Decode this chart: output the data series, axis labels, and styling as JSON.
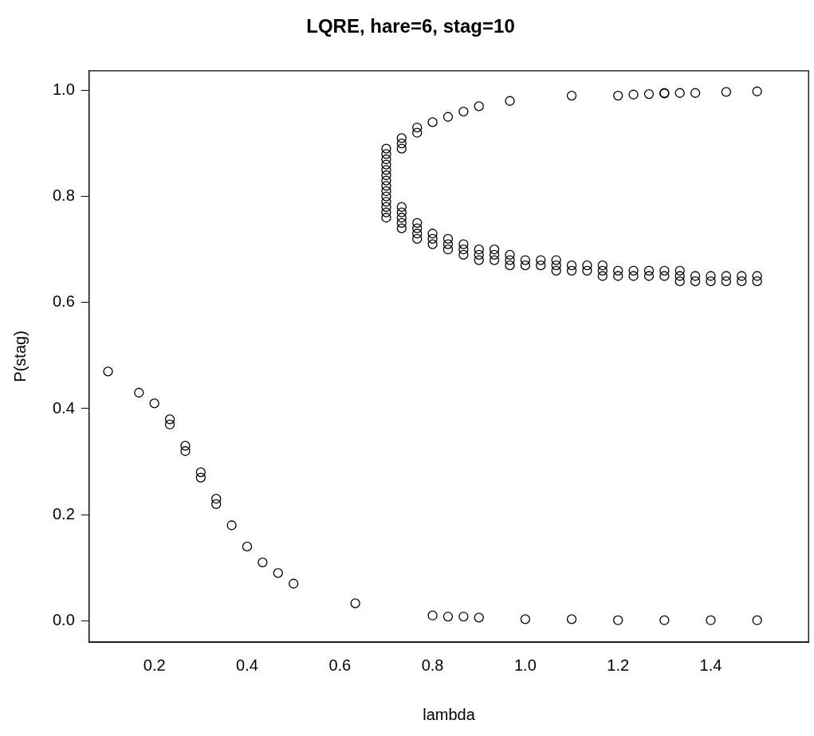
{
  "chart_data": {
    "type": "scatter",
    "title": "LQRE, hare=6, stag=10",
    "xlabel": "lambda",
    "ylabel": "P(stag)",
    "color": "#000000",
    "marker": "circle",
    "x": [
      0.1,
      0.1667,
      0.2,
      0.2333,
      0.2333,
      0.2667,
      0.2667,
      0.3,
      0.3,
      0.3333,
      0.3333,
      0.3667,
      0.4,
      0.4333,
      0.4667,
      0.5,
      0.6333,
      0.8,
      0.8333,
      0.8667,
      0.9,
      1.0,
      1.1,
      1.2,
      1.3,
      1.4,
      1.5,
      0.7,
      0.7,
      0.7,
      0.7,
      0.7,
      0.7,
      0.7,
      0.7,
      0.7,
      0.7,
      0.7,
      0.7,
      0.7,
      0.7,
      0.7333,
      0.7333,
      0.7333,
      0.7333,
      0.7333,
      0.7333,
      0.7333,
      0.7333,
      0.7667,
      0.7667,
      0.7667,
      0.7667,
      0.7667,
      0.7667,
      0.8,
      0.8,
      0.8,
      0.8,
      0.8333,
      0.8333,
      0.8333,
      0.8333,
      0.8667,
      0.8667,
      0.8667,
      0.8667,
      0.9,
      0.9,
      0.9,
      0.9,
      0.9333,
      0.9333,
      0.9333,
      0.9667,
      0.9667,
      0.9667,
      0.9667,
      1.0,
      1.0,
      1.0333,
      1.0333,
      1.0667,
      1.0667,
      1.0667,
      1.1,
      1.1,
      1.1,
      1.1333,
      1.1333,
      1.1667,
      1.1667,
      1.1667,
      1.2,
      1.2,
      1.2,
      1.2333,
      1.2333,
      1.2333,
      1.2667,
      1.2667,
      1.2667,
      1.3,
      1.3,
      1.3,
      1.3,
      1.3333,
      1.3333,
      1.3333,
      1.3333,
      1.3667,
      1.3667,
      1.3667,
      1.4,
      1.4,
      1.4333,
      1.4333,
      1.4333,
      1.4667,
      1.4667,
      1.5,
      1.5,
      1.5
    ],
    "values": [
      0.47,
      0.43,
      0.41,
      0.38,
      0.37,
      0.33,
      0.32,
      0.28,
      0.27,
      0.23,
      0.22,
      0.18,
      0.14,
      0.11,
      0.09,
      0.07,
      0.033,
      0.01,
      0.008,
      0.008,
      0.006,
      0.003,
      0.003,
      0.001,
      0.001,
      0.001,
      0.001,
      0.76,
      0.77,
      0.78,
      0.79,
      0.8,
      0.81,
      0.82,
      0.83,
      0.84,
      0.85,
      0.86,
      0.87,
      0.88,
      0.89,
      0.89,
      0.9,
      0.91,
      0.74,
      0.75,
      0.76,
      0.77,
      0.78,
      0.92,
      0.93,
      0.72,
      0.73,
      0.74,
      0.75,
      0.94,
      0.71,
      0.72,
      0.73,
      0.95,
      0.7,
      0.71,
      0.72,
      0.96,
      0.69,
      0.7,
      0.71,
      0.97,
      0.68,
      0.69,
      0.7,
      0.68,
      0.69,
      0.7,
      0.98,
      0.67,
      0.68,
      0.69,
      0.67,
      0.68,
      0.67,
      0.68,
      0.66,
      0.67,
      0.68,
      0.99,
      0.66,
      0.67,
      0.66,
      0.67,
      0.65,
      0.66,
      0.67,
      0.99,
      0.65,
      0.66,
      0.992,
      0.65,
      0.66,
      0.993,
      0.65,
      0.66,
      0.994,
      0.995,
      0.65,
      0.66,
      0.995,
      0.64,
      0.65,
      0.66,
      0.995,
      0.64,
      0.65,
      0.64,
      0.65,
      0.997,
      0.64,
      0.65,
      0.64,
      0.65,
      0.998,
      0.64,
      0.65
    ],
    "xlim": [
      0.0592,
      1.611
    ],
    "ylim": [
      -0.04,
      1.037
    ],
    "xticks": [
      {
        "value": 0.2,
        "label": "0.2"
      },
      {
        "value": 0.4,
        "label": "0.4"
      },
      {
        "value": 0.6,
        "label": "0.6"
      },
      {
        "value": 0.8,
        "label": "0.8"
      },
      {
        "value": 1.0,
        "label": "1.0"
      },
      {
        "value": 1.2,
        "label": "1.2"
      },
      {
        "value": 1.4,
        "label": "1.4"
      }
    ],
    "yticks": [
      {
        "value": 0,
        "label": "0.0"
      },
      {
        "value": 0.2,
        "label": "0.2"
      },
      {
        "value": 0.4,
        "label": "0.4"
      },
      {
        "value": 0.6,
        "label": "0.6"
      },
      {
        "value": 0.8,
        "label": "0.8"
      },
      {
        "value": 1.0,
        "label": "1.0"
      }
    ]
  }
}
